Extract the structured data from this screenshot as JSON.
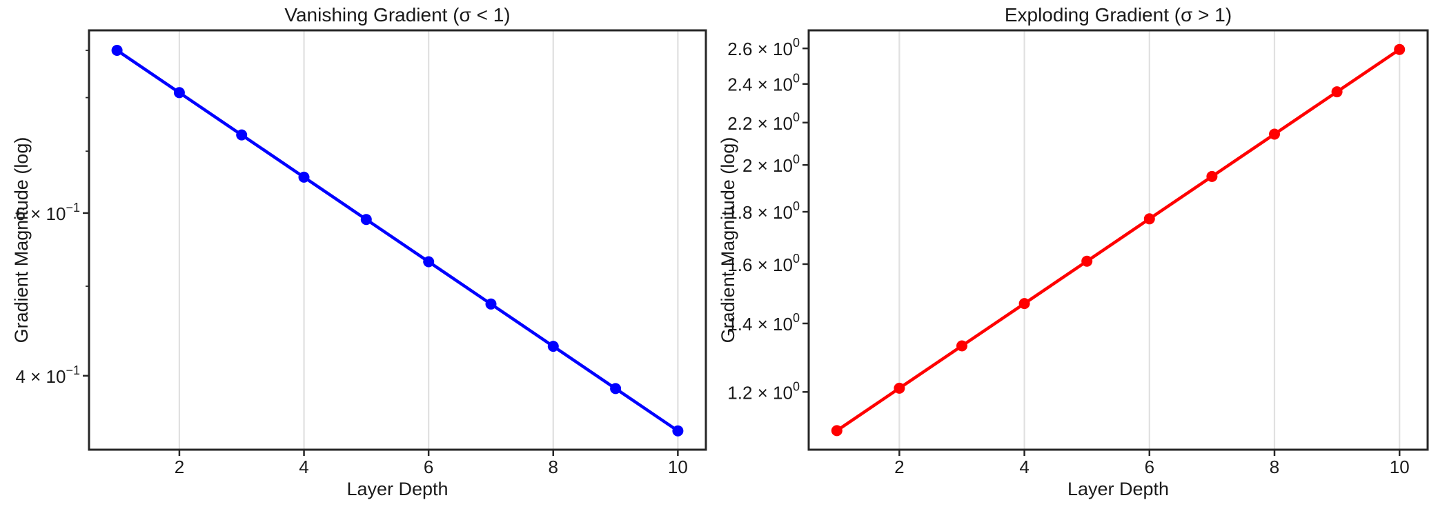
{
  "figure": {
    "background": "#ffffff",
    "spine_color": "#262626",
    "grid_color": "#e0e0e0",
    "text_color": "#1a1a1a"
  },
  "chart_data": [
    {
      "id": "vanishing-gradient",
      "type": "line",
      "title": "Vanishing Gradient (σ < 1)",
      "xlabel": "Layer Depth",
      "ylabel": "Gradient Magnitude (log)",
      "yscale": "log",
      "grid": "vertical-only",
      "legend": "none",
      "line_color": "#0000ff",
      "marker": "circle",
      "x": [
        1,
        2,
        3,
        4,
        5,
        6,
        7,
        8,
        9,
        10
      ],
      "y": [
        0.9,
        0.81,
        0.729,
        0.6561,
        0.59049,
        0.531441,
        0.4782969,
        0.4304672,
        0.3874205,
        0.3486784
      ],
      "xlim": [
        0.55,
        10.45
      ],
      "ylim": [
        0.3327,
        0.946
      ],
      "xticks": [
        {
          "value": 2,
          "label": "2"
        },
        {
          "value": 4,
          "label": "4"
        },
        {
          "value": 6,
          "label": "6"
        },
        {
          "value": 8,
          "label": "8"
        },
        {
          "value": 10,
          "label": "10"
        }
      ],
      "yticks": [
        {
          "value": 0.6,
          "mantissa": "6 × 10",
          "exponent": "−1"
        },
        {
          "value": 0.4,
          "mantissa": "4 × 10",
          "exponent": "−1"
        }
      ],
      "yminorticks": [
        0.9,
        0.8,
        0.7,
        0.5
      ]
    },
    {
      "id": "exploding-gradient",
      "type": "line",
      "title": "Exploding Gradient (σ > 1)",
      "xlabel": "Layer Depth",
      "ylabel": "Gradient Magnitude (log)",
      "yscale": "log",
      "grid": "vertical-only",
      "legend": "none",
      "line_color": "#ff0000",
      "marker": "circle",
      "x": [
        1,
        2,
        3,
        4,
        5,
        6,
        7,
        8,
        9,
        10
      ],
      "y": [
        1.1,
        1.21,
        1.331,
        1.4641,
        1.61051,
        1.771561,
        1.9487171,
        2.1435888,
        2.3579477,
        2.5937425
      ],
      "xlim": [
        0.55,
        10.45
      ],
      "ylim": [
        1.0538,
        2.7077
      ],
      "xticks": [
        {
          "value": 2,
          "label": "2"
        },
        {
          "value": 4,
          "label": "4"
        },
        {
          "value": 6,
          "label": "6"
        },
        {
          "value": 8,
          "label": "8"
        },
        {
          "value": 10,
          "label": "10"
        }
      ],
      "yticks": [
        {
          "value": 2.6,
          "mantissa": "2.6 × 10",
          "exponent": "0"
        },
        {
          "value": 2.4,
          "mantissa": "2.4 × 10",
          "exponent": "0"
        },
        {
          "value": 2.2,
          "mantissa": "2.2 × 10",
          "exponent": "0"
        },
        {
          "value": 2.0,
          "mantissa": "2 × 10",
          "exponent": "0"
        },
        {
          "value": 1.8,
          "mantissa": "1.8 × 10",
          "exponent": "0"
        },
        {
          "value": 1.6,
          "mantissa": "1.6 × 10",
          "exponent": "0"
        },
        {
          "value": 1.4,
          "mantissa": "1.4 × 10",
          "exponent": "0"
        },
        {
          "value": 1.2,
          "mantissa": "1.2 × 10",
          "exponent": "0"
        }
      ],
      "yminorticks": []
    }
  ]
}
